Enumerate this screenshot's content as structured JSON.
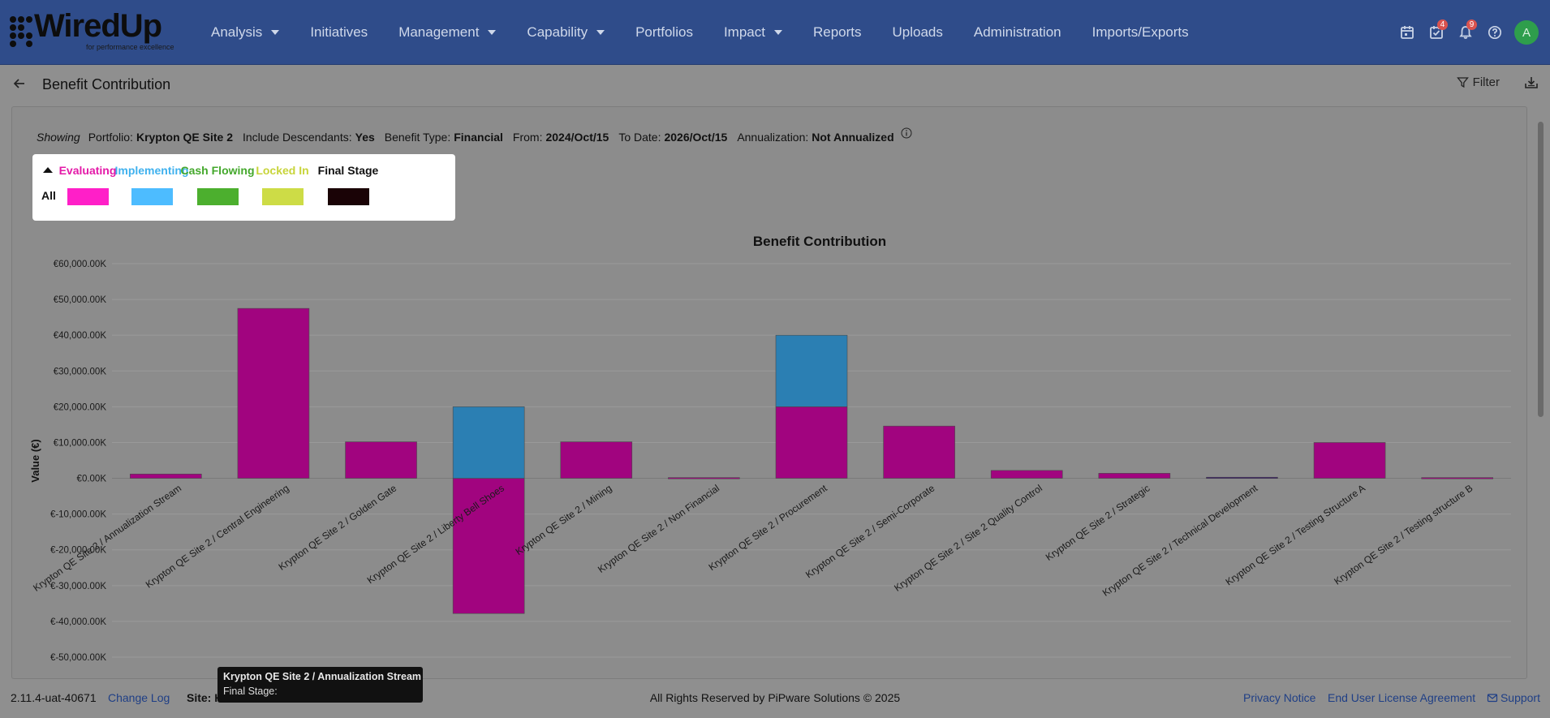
{
  "brand": {
    "name": "WiredUp",
    "tagline": "for performance excellence"
  },
  "nav": {
    "items": [
      {
        "label": "Analysis",
        "dropdown": true
      },
      {
        "label": "Initiatives",
        "dropdown": false
      },
      {
        "label": "Management",
        "dropdown": true
      },
      {
        "label": "Capability",
        "dropdown": true
      },
      {
        "label": "Portfolios",
        "dropdown": false
      },
      {
        "label": "Impact",
        "dropdown": true
      },
      {
        "label": "Reports",
        "dropdown": false
      },
      {
        "label": "Uploads",
        "dropdown": false
      },
      {
        "label": "Administration",
        "dropdown": false
      },
      {
        "label": "Imports/Exports",
        "dropdown": false
      }
    ],
    "icons": {
      "calendar": "calendar-icon",
      "tasks": "task-check-icon",
      "tasks_badge": "4",
      "notifications": "bell-icon",
      "notifications_badge": "9",
      "help": "help-icon"
    },
    "avatar_initial": "A"
  },
  "header": {
    "title": "Benefit Contribution",
    "filter_label": "Filter"
  },
  "showing": {
    "prefix": "Showing",
    "portfolio_label": "Portfolio:",
    "portfolio_value": "Krypton QE Site 2",
    "descendants_label": "Include Descendants:",
    "descendants_value": "Yes",
    "benefit_type_label": "Benefit Type:",
    "benefit_type_value": "Financial",
    "from_label": "From:",
    "from_value": "2024/Oct/15",
    "to_label": "To Date:",
    "to_value": "2026/Oct/15",
    "annualization_label": "Annualization:",
    "annualization_value": "Not Annualized"
  },
  "legend": {
    "row_label": "All",
    "stages": [
      {
        "label": "Evaluating",
        "color": "#ff1fc8",
        "text_color": "#e41aa8"
      },
      {
        "label": "Implementing",
        "color": "#4dbcff",
        "text_color": "#3fb1ee"
      },
      {
        "label": "Cash Flowing",
        "color": "#4caf2e",
        "text_color": "#44a82c"
      },
      {
        "label": "Locked In",
        "color": "#cddc46",
        "text_color": "#c8d43a"
      },
      {
        "label": "Final Stage",
        "color": "#1a0306",
        "text_color": "#111111"
      }
    ]
  },
  "chart_data": {
    "type": "bar",
    "stacked": true,
    "title": "Benefit Contribution",
    "xlabel": "",
    "ylabel": "Value (€)",
    "ylim": [
      -50000,
      60000
    ],
    "y_ticks": [
      60000,
      50000,
      40000,
      30000,
      20000,
      10000,
      0,
      -10000,
      -20000,
      -30000,
      -40000,
      -50000
    ],
    "y_tick_labels": [
      "€60,000.00K",
      "€50,000.00K",
      "€40,000.00K",
      "€30,000.00K",
      "€20,000.00K",
      "€10,000.00K",
      "€0.00K",
      "€-10,000.00K",
      "€-20,000.00K",
      "€-30,000.00K",
      "€-40,000.00K",
      "€-50,000.00K"
    ],
    "grid": true,
    "categories": [
      "Krypton QE Site 2 / Annualization Stream",
      "Krypton QE Site 2 / Central Engineering",
      "Krypton QE Site 2 / Golden Gate",
      "Krypton QE Site 2 / Liberty Bell Shoes",
      "Krypton QE Site 2 / Mining",
      "Krypton QE Site 2 / Non Financial",
      "Krypton QE Site 2 / Procurement",
      "Krypton QE Site 2 / Semi-Corporate",
      "Krypton QE Site 2 / Site 2 Quality Control",
      "Krypton QE Site 2 / Strategic",
      "Krypton QE Site 2 / Technical Development",
      "Krypton QE Site 2 / Testing Structure A",
      "Krypton QE Site 2 / Testing structure B"
    ],
    "series": [
      {
        "name": "Evaluating",
        "color": "#a1047f",
        "values": [
          1200,
          47500,
          10200,
          -37800,
          10200,
          200,
          20000,
          14600,
          2200,
          1400,
          0,
          10000,
          200
        ]
      },
      {
        "name": "Implementing",
        "color": "#2b7fb3",
        "values": [
          0,
          0,
          0,
          20000,
          0,
          0,
          20000,
          0,
          0,
          0,
          0,
          0,
          0
        ]
      },
      {
        "name": "Cash Flowing",
        "color": "#4caf2e",
        "values": [
          0,
          0,
          0,
          0,
          0,
          0,
          0,
          0,
          0,
          0,
          0,
          0,
          0
        ]
      },
      {
        "name": "Locked In",
        "color": "#cddc46",
        "values": [
          0,
          0,
          0,
          0,
          0,
          0,
          0,
          0,
          0,
          0,
          0,
          0,
          0
        ]
      },
      {
        "name": "Final Stage",
        "color": "#3a1a6e",
        "values": [
          0,
          0,
          0,
          0,
          0,
          0,
          0,
          0,
          0,
          0,
          300,
          0,
          0
        ]
      }
    ]
  },
  "tooltip": {
    "title": "Krypton QE Site 2 / Annualization Stream",
    "line": "Final Stage:"
  },
  "footer": {
    "version": "2.11.4-uat-40671",
    "change_log": "Change Log",
    "site_label": "Site: K",
    "rights": "All Rights Reserved by PiPware Solutions © 2025",
    "privacy": "Privacy Notice",
    "eula": "End User License Agreement",
    "support": "Support"
  }
}
